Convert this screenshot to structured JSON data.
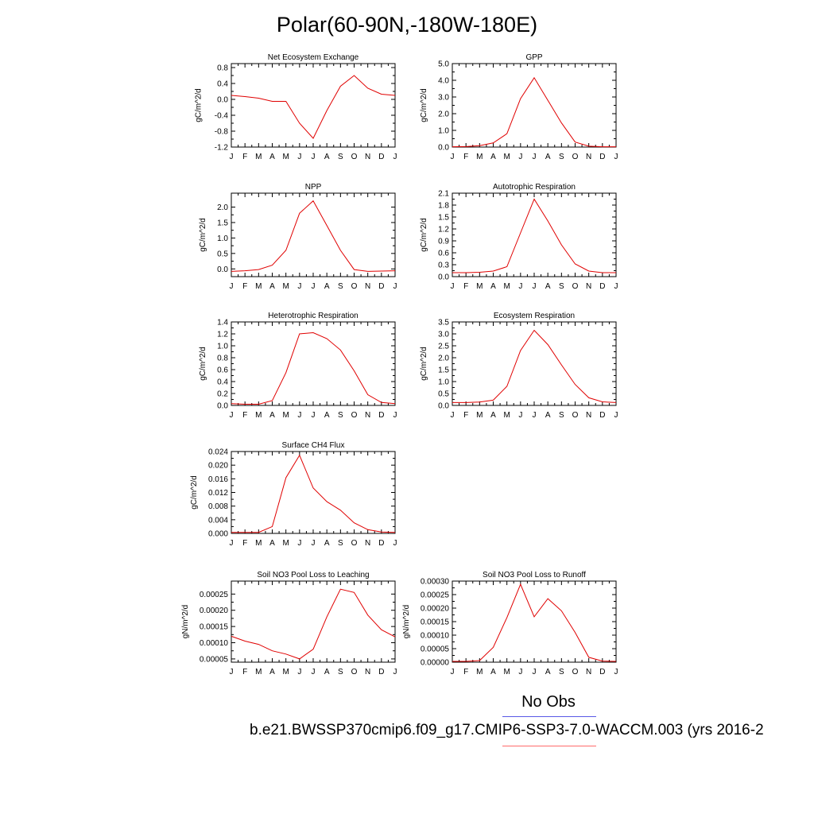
{
  "title": "Polar(60-90N,-180W-180E)",
  "legend": {
    "obs_label": "No Obs",
    "case_label": "b.e21.BWSSP370cmip6.f09_g17.CMIP6-SSP3-7.0-WACCM.003 (yrs 2016-2",
    "obs_color": "#5a5ae6",
    "case_color": "#ff6a6a"
  },
  "chart_data": [
    {
      "type": "line",
      "title": "Net Ecosystem Exchange",
      "ylabel": "gC/m^2/d",
      "categories": [
        "J",
        "F",
        "M",
        "A",
        "M",
        "J",
        "J",
        "A",
        "S",
        "O",
        "N",
        "D",
        "J"
      ],
      "ylim": [
        -1.2,
        0.9
      ],
      "yticks": [
        0.8,
        0.4,
        0.0,
        -0.4,
        -0.8,
        -1.2
      ],
      "ytick_labels": [
        "0.8",
        "0.4",
        "0.0",
        "-0.4",
        "-0.8",
        "-1.2"
      ],
      "series": [
        {
          "color": "#e00000",
          "values": [
            0.1,
            0.07,
            0.03,
            -0.05,
            -0.05,
            -0.6,
            -0.98,
            -0.28,
            0.33,
            0.6,
            0.28,
            0.13,
            0.1
          ]
        }
      ]
    },
    {
      "type": "line",
      "title": "GPP",
      "ylabel": "gC/m^2/d",
      "categories": [
        "J",
        "F",
        "M",
        "A",
        "M",
        "J",
        "J",
        "A",
        "S",
        "O",
        "N",
        "D",
        "J"
      ],
      "ylim": [
        0,
        5
      ],
      "yticks": [
        5,
        4,
        3,
        2,
        1,
        0
      ],
      "ytick_labels": [
        "5.0",
        "4.0",
        "3.0",
        "2.0",
        "1.0",
        "0.0"
      ],
      "series": [
        {
          "color": "#e00000",
          "values": [
            0.02,
            0.03,
            0.08,
            0.25,
            0.8,
            2.9,
            4.15,
            2.8,
            1.45,
            0.3,
            0.05,
            0.02,
            0.02
          ]
        }
      ]
    },
    {
      "type": "line",
      "title": "NPP",
      "ylabel": "gC/m^2/d",
      "categories": [
        "J",
        "F",
        "M",
        "A",
        "M",
        "J",
        "J",
        "A",
        "S",
        "O",
        "N",
        "D",
        "J"
      ],
      "ylim": [
        -0.25,
        2.45
      ],
      "yticks": [
        2.0,
        1.5,
        1.0,
        0.5,
        0.0
      ],
      "ytick_labels": [
        "2.0",
        "1.5",
        "1.0",
        "0.5",
        "0.0"
      ],
      "series": [
        {
          "color": "#e00000",
          "values": [
            -0.08,
            -0.06,
            -0.02,
            0.12,
            0.6,
            1.8,
            2.2,
            1.4,
            0.6,
            -0.02,
            -0.08,
            -0.07,
            -0.06
          ]
        }
      ]
    },
    {
      "type": "line",
      "title": "Autotrophic Respiration",
      "ylabel": "gC/m^2/d",
      "categories": [
        "J",
        "F",
        "M",
        "A",
        "M",
        "J",
        "J",
        "A",
        "S",
        "O",
        "N",
        "D",
        "J"
      ],
      "ylim": [
        0,
        2.1
      ],
      "yticks": [
        2.1,
        1.8,
        1.5,
        1.2,
        0.9,
        0.6,
        0.3,
        0.0
      ],
      "ytick_labels": [
        "2.1",
        "1.8",
        "1.5",
        "1.2",
        "0.9",
        "0.6",
        "0.3",
        "0.0"
      ],
      "series": [
        {
          "color": "#e00000",
          "values": [
            0.1,
            0.1,
            0.11,
            0.14,
            0.25,
            1.1,
            1.95,
            1.4,
            0.8,
            0.32,
            0.14,
            0.1,
            0.1
          ]
        }
      ]
    },
    {
      "type": "line",
      "title": "Heterotrophic Respiration",
      "ylabel": "gC/m^2/d",
      "categories": [
        "J",
        "F",
        "M",
        "A",
        "M",
        "J",
        "J",
        "A",
        "S",
        "O",
        "N",
        "D",
        "J"
      ],
      "ylim": [
        0,
        1.4
      ],
      "yticks": [
        1.4,
        1.2,
        1.0,
        0.8,
        0.6,
        0.4,
        0.2,
        0.0
      ],
      "ytick_labels": [
        "1.4",
        "1.2",
        "1.0",
        "0.8",
        "0.6",
        "0.4",
        "0.2",
        "0.0"
      ],
      "series": [
        {
          "color": "#e00000",
          "values": [
            0.03,
            0.02,
            0.02,
            0.08,
            0.55,
            1.2,
            1.22,
            1.12,
            0.93,
            0.58,
            0.18,
            0.05,
            0.03
          ]
        }
      ]
    },
    {
      "type": "line",
      "title": "Ecosystem Respiration",
      "ylabel": "gC/m^2/d",
      "categories": [
        "J",
        "F",
        "M",
        "A",
        "M",
        "J",
        "J",
        "A",
        "S",
        "O",
        "N",
        "D",
        "J"
      ],
      "ylim": [
        0,
        3.5
      ],
      "yticks": [
        3.5,
        3.0,
        2.5,
        2.0,
        1.5,
        1.0,
        0.5,
        0.0
      ],
      "ytick_labels": [
        "3.5",
        "3.0",
        "2.5",
        "2.0",
        "1.5",
        "1.0",
        "0.5",
        "0.0"
      ],
      "series": [
        {
          "color": "#e00000",
          "values": [
            0.12,
            0.12,
            0.14,
            0.22,
            0.8,
            2.3,
            3.15,
            2.55,
            1.7,
            0.88,
            0.32,
            0.15,
            0.12
          ]
        }
      ]
    },
    {
      "type": "line",
      "title": "Surface CH4 Flux",
      "ylabel": "gC/m^2/d",
      "categories": [
        "J",
        "F",
        "M",
        "A",
        "M",
        "J",
        "J",
        "A",
        "S",
        "O",
        "N",
        "D",
        "J"
      ],
      "ylim": [
        0,
        0.024
      ],
      "yticks": [
        0.024,
        0.02,
        0.016,
        0.012,
        0.008,
        0.004,
        0.0
      ],
      "ytick_labels": [
        "0.024",
        "0.020",
        "0.016",
        "0.012",
        "0.008",
        "0.004",
        "0.000"
      ],
      "series": [
        {
          "color": "#e00000",
          "values": [
            0.0003,
            0.0003,
            0.0003,
            0.002,
            0.0163,
            0.0229,
            0.0133,
            0.0093,
            0.0068,
            0.0031,
            0.0011,
            0.0004,
            0.0003
          ]
        }
      ]
    },
    {
      "type": "line",
      "title": "Soil NO3 Pool Loss to Leaching",
      "ylabel": "gN/m^2/d",
      "categories": [
        "J",
        "F",
        "M",
        "A",
        "M",
        "J",
        "J",
        "A",
        "S",
        "O",
        "N",
        "D",
        "J"
      ],
      "ylim": [
        4e-05,
        0.00029
      ],
      "yticks": [
        0.00025,
        0.0002,
        0.00015,
        0.0001,
        5e-05
      ],
      "ytick_labels": [
        "0.00025",
        "0.00020",
        "0.00015",
        "0.00010",
        "0.00005"
      ],
      "series": [
        {
          "color": "#e00000",
          "values": [
            0.00012,
            0.000105,
            9.5e-05,
            7.5e-05,
            6.5e-05,
            5e-05,
            8e-05,
            0.00018,
            0.000265,
            0.000255,
            0.000185,
            0.00014,
            0.000118
          ]
        }
      ]
    },
    {
      "type": "line",
      "title": "Soil NO3 Pool Loss to Runoff",
      "ylabel": "gN/m^2/d",
      "categories": [
        "J",
        "F",
        "M",
        "A",
        "M",
        "J",
        "J",
        "A",
        "S",
        "O",
        "N",
        "D",
        "J"
      ],
      "ylim": [
        0,
        0.0003
      ],
      "yticks": [
        0.0003,
        0.00025,
        0.0002,
        0.00015,
        0.0001,
        5e-05,
        0.0
      ],
      "ytick_labels": [
        "0.00030",
        "0.00025",
        "0.00020",
        "0.00015",
        "0.00010",
        "0.00005",
        "0.00000"
      ],
      "series": [
        {
          "color": "#e00000",
          "values": [
            3e-06,
            3e-06,
            6e-06,
            5.5e-05,
            0.000165,
            0.000288,
            0.000168,
            0.000235,
            0.00019,
            0.00011,
            1.8e-05,
            4e-06,
            3e-06
          ]
        }
      ]
    }
  ]
}
